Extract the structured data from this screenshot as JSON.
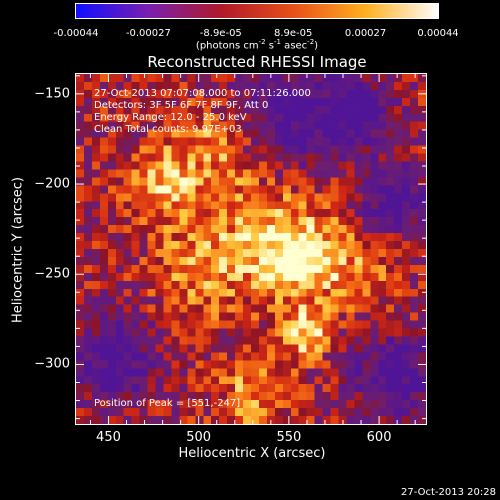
{
  "colorbar": {
    "tick_labels": [
      "-0.00044",
      "-0.00027",
      "-8.9e-05",
      "8.9e-05",
      "0.00027",
      "0.00044"
    ],
    "units_prefix": "(photons cm",
    "units_exp1": "-2",
    "units_mid": " s",
    "units_exp2": "-1",
    "units_mid2": " asec",
    "units_exp3": "-2",
    "units_suffix": ")",
    "colors": [
      "#1010ff",
      "#7a1fb0",
      "#b01a2a",
      "#e8501a",
      "#ffb020",
      "#ffffff"
    ]
  },
  "plot": {
    "title": "Reconstructed RHESSI Image",
    "info_lines": [
      "27-Oct-2013 07:07:08.000 to 07:11:26.000",
      "Detectors: 3F 5F 6F 7F 8F 9F, Att 0",
      "Energy Range: 12.0 - 25.0 keV",
      "Clean      Total counts: 9.97E+03"
    ],
    "peak_text": "Position of Peak = [551,-247]",
    "xlabel": "Heliocentric X (arcsec)",
    "ylabel": "Heliocentric Y (arcsec)",
    "xticks": [
      "450",
      "500",
      "550",
      "600"
    ],
    "yticks": [
      "-150",
      "-200",
      "-250",
      "-300"
    ],
    "xlim": [
      432,
      626
    ],
    "ylim": [
      -333,
      -139
    ],
    "peak_position": [
      551,
      -247
    ]
  },
  "footer": {
    "timestamp": "27-Oct-2013 20:28"
  }
}
